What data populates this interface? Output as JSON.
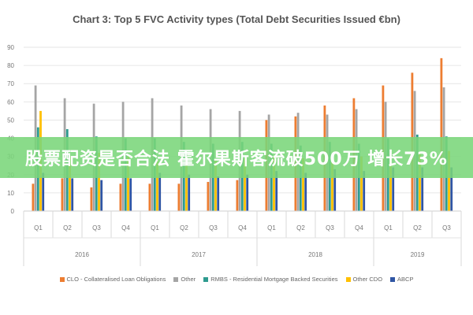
{
  "chart_data": {
    "type": "bar",
    "title": "Chart 3: Top 5 FVC Activity types (Total Debt Securities Issued €bn)",
    "ylim": [
      0,
      90
    ],
    "yticks": [
      0,
      10,
      20,
      30,
      40,
      50,
      60,
      70,
      80,
      90
    ],
    "categories": [
      "Q1",
      "Q2",
      "Q3",
      "Q4",
      "Q1",
      "Q2",
      "Q3",
      "Q4",
      "Q1",
      "Q2",
      "Q3",
      "Q4",
      "Q1",
      "Q2",
      "Q3"
    ],
    "years": [
      {
        "label": "2016",
        "span": 4
      },
      {
        "label": "2017",
        "span": 4
      },
      {
        "label": "2018",
        "span": 4
      },
      {
        "label": "2019",
        "span": 3
      }
    ],
    "series": [
      {
        "name": "CLO - Collateralised Loan Obligations",
        "color": "#ed7d31",
        "values": [
          15,
          18,
          13,
          15,
          15,
          15,
          16,
          17,
          50,
          52,
          58,
          62,
          69,
          76,
          84
        ]
      },
      {
        "name": "Other",
        "color": "#a5a5a5",
        "values": [
          69,
          62,
          59,
          60,
          62,
          58,
          56,
          55,
          53,
          54,
          53,
          56,
          60,
          66,
          68
        ]
      },
      {
        "name": "RMBS - Residential Mortgage Backed Securities",
        "color": "#2e9b8f",
        "values": [
          46,
          45,
          41,
          40,
          40,
          38,
          37,
          38,
          37,
          36,
          38,
          37,
          40,
          42,
          41
        ]
      },
      {
        "name": "Other CDO",
        "color": "#ffc000",
        "values": [
          55,
          30,
          32,
          30,
          28,
          29,
          28,
          29,
          30,
          29,
          31,
          30,
          31,
          32,
          33
        ]
      },
      {
        "name": "ABCP",
        "color": "#2f55a4",
        "values": [
          21,
          18,
          17,
          18,
          21,
          20,
          19,
          20,
          22,
          21,
          23,
          22,
          24,
          24,
          24
        ]
      }
    ],
    "grid": true,
    "legend_position": "bottom"
  },
  "overlay": {
    "banner_text": "股票配资是否合法 霍尔果斯客流破500万 增长73%"
  }
}
